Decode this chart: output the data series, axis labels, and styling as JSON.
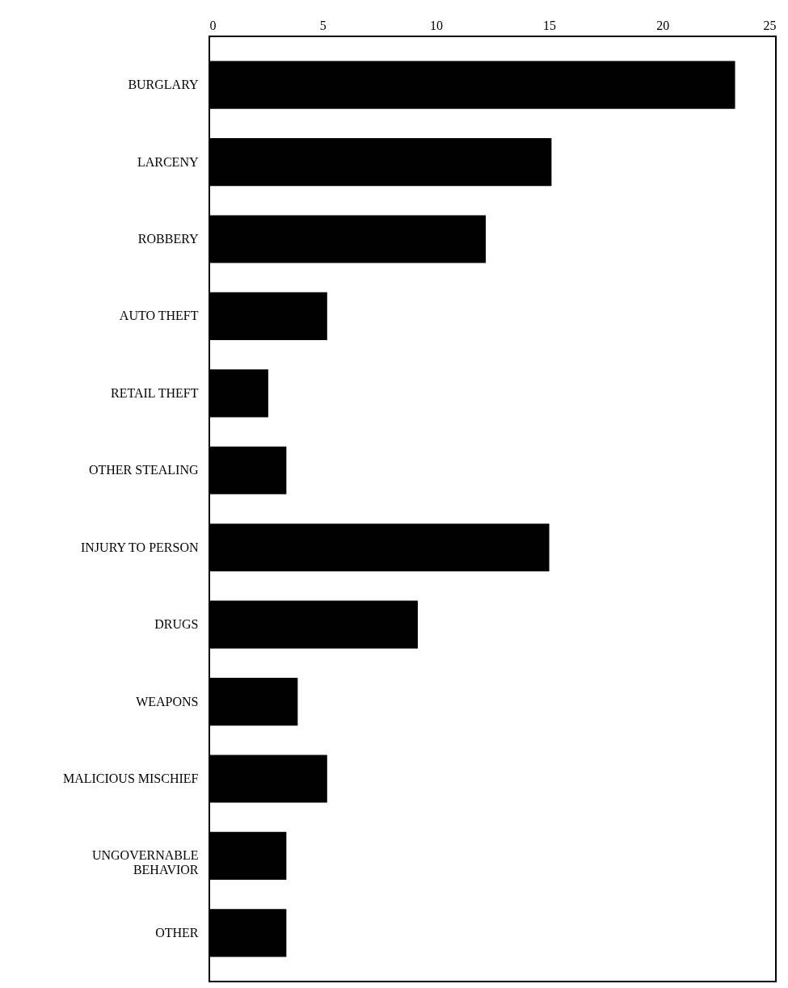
{
  "chart_data": {
    "type": "bar",
    "orientation": "horizontal",
    "categories": [
      "BURGLARY",
      "LARCENY",
      "ROBBERY",
      "AUTO THEFT",
      "RETAIL THEFT",
      "OTHER STEALING",
      "INJURY TO PERSON",
      "DRUGS",
      "WEAPONS",
      "MALICIOUS MISCHIEF",
      "UNGOVERNABLE BEHAVIOR",
      "OTHER"
    ],
    "values": [
      23.2,
      15.1,
      12.2,
      5.2,
      2.6,
      3.4,
      15.0,
      9.2,
      3.9,
      5.2,
      3.4,
      3.4
    ],
    "color": "#000000",
    "xlim": [
      0,
      25
    ],
    "xticks": [
      0,
      5,
      10,
      15,
      20,
      25
    ],
    "grid": false
  }
}
